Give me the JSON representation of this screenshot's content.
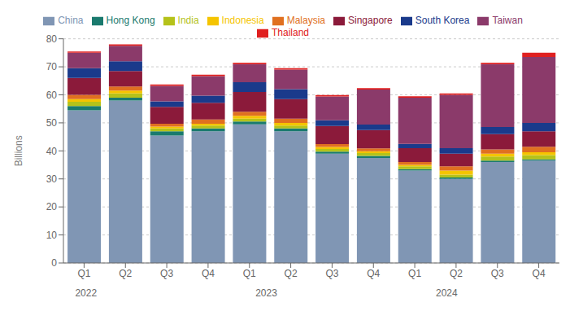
{
  "chart_data": {
    "type": "bar",
    "stacked": true,
    "categories": [
      "Q1",
      "Q2",
      "Q3",
      "Q4",
      "Q1",
      "Q2",
      "Q3",
      "Q4",
      "Q1",
      "Q2",
      "Q3",
      "Q4"
    ],
    "series": [
      {
        "name": "China",
        "color": "#8096b4",
        "values": [
          54.5,
          58.0,
          45.5,
          47.0,
          49.5,
          47.0,
          39.0,
          37.5,
          33.0,
          30.0,
          36.0,
          36.5
        ]
      },
      {
        "name": "Hong Kong",
        "color": "#1a7a6e",
        "values": [
          1.5,
          1.0,
          1.5,
          1.0,
          1.0,
          1.0,
          0.7,
          0.7,
          0.5,
          0.5,
          0.5,
          0.5
        ]
      },
      {
        "name": "India",
        "color": "#b5c21a",
        "values": [
          1.5,
          1.5,
          1.0,
          1.0,
          1.0,
          1.0,
          1.0,
          1.0,
          1.0,
          1.0,
          1.5,
          1.5
        ]
      },
      {
        "name": "Indonesia",
        "color": "#f5c400",
        "values": [
          1.0,
          1.0,
          0.7,
          0.7,
          1.0,
          1.0,
          0.7,
          0.7,
          0.5,
          1.5,
          1.0,
          1.0
        ]
      },
      {
        "name": "Malaysia",
        "color": "#e07020",
        "values": [
          1.5,
          1.5,
          1.0,
          1.5,
          1.5,
          1.5,
          1.0,
          1.0,
          1.0,
          1.5,
          1.5,
          2.0
        ]
      },
      {
        "name": "Singapore",
        "color": "#8b1a3a",
        "values": [
          6.0,
          5.5,
          6.0,
          6.0,
          7.0,
          7.0,
          6.5,
          6.5,
          5.0,
          4.5,
          5.5,
          5.5
        ]
      },
      {
        "name": "South Korea",
        "color": "#1a3a8b",
        "values": [
          3.5,
          3.5,
          2.0,
          2.5,
          3.5,
          3.5,
          2.0,
          2.0,
          1.5,
          2.0,
          2.5,
          3.0
        ]
      },
      {
        "name": "Taiwan",
        "color": "#8b3a6a",
        "values": [
          5.5,
          5.5,
          5.5,
          7.0,
          6.5,
          7.0,
          8.5,
          12.5,
          16.5,
          19.0,
          22.5,
          23.5
        ]
      },
      {
        "name": "Thailand",
        "color": "#e02020",
        "values": [
          0.5,
          0.5,
          0.5,
          0.5,
          0.5,
          0.5,
          0.5,
          0.5,
          0.5,
          0.5,
          0.5,
          1.5
        ]
      }
    ],
    "ylabel": "Billions",
    "ylim": [
      0,
      80
    ],
    "yticks": [
      0,
      10,
      20,
      30,
      40,
      50,
      60,
      70,
      80
    ],
    "grid": true,
    "legend": "top",
    "annotations": [
      {
        "text": "2022",
        "x": 0.5
      },
      {
        "text": "2023",
        "x": 4.5
      },
      {
        "text": "2024",
        "x": 8.5
      }
    ]
  }
}
